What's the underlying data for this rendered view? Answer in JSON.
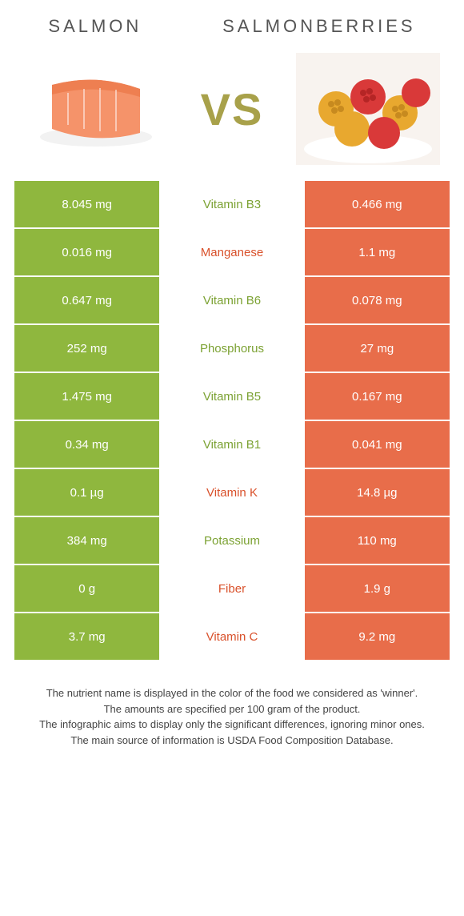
{
  "header": {
    "left_title": "Salmon",
    "right_title": "Salmonberries",
    "vs_label": "VS"
  },
  "colors": {
    "left_bg": "#8fb73e",
    "right_bg": "#e86d4a",
    "left_text": "#ffffff",
    "right_text": "#ffffff",
    "mid_left_winner": "#7ca233",
    "mid_right_winner": "#d9512b"
  },
  "rows": [
    {
      "left": "8.045 mg",
      "label": "Vitamin B3",
      "right": "0.466 mg",
      "winner": "left"
    },
    {
      "left": "0.016 mg",
      "label": "Manganese",
      "right": "1.1 mg",
      "winner": "right"
    },
    {
      "left": "0.647 mg",
      "label": "Vitamin B6",
      "right": "0.078 mg",
      "winner": "left"
    },
    {
      "left": "252 mg",
      "label": "Phosphorus",
      "right": "27 mg",
      "winner": "left"
    },
    {
      "left": "1.475 mg",
      "label": "Vitamin B5",
      "right": "0.167 mg",
      "winner": "left"
    },
    {
      "left": "0.34 mg",
      "label": "Vitamin B1",
      "right": "0.041 mg",
      "winner": "left"
    },
    {
      "left": "0.1 µg",
      "label": "Vitamin K",
      "right": "14.8 µg",
      "winner": "right"
    },
    {
      "left": "384 mg",
      "label": "Potassium",
      "right": "110 mg",
      "winner": "left"
    },
    {
      "left": "0 g",
      "label": "Fiber",
      "right": "1.9 g",
      "winner": "right"
    },
    {
      "left": "3.7 mg",
      "label": "Vitamin C",
      "right": "9.2 mg",
      "winner": "right"
    }
  ],
  "footer": {
    "line1": "The nutrient name is displayed in the color of the food we considered as 'winner'.",
    "line2": "The amounts are specified per 100 gram of the product.",
    "line3": "The infographic aims to display only the significant differences, ignoring minor ones.",
    "line4": "The main source of information is USDA Food Composition Database."
  }
}
